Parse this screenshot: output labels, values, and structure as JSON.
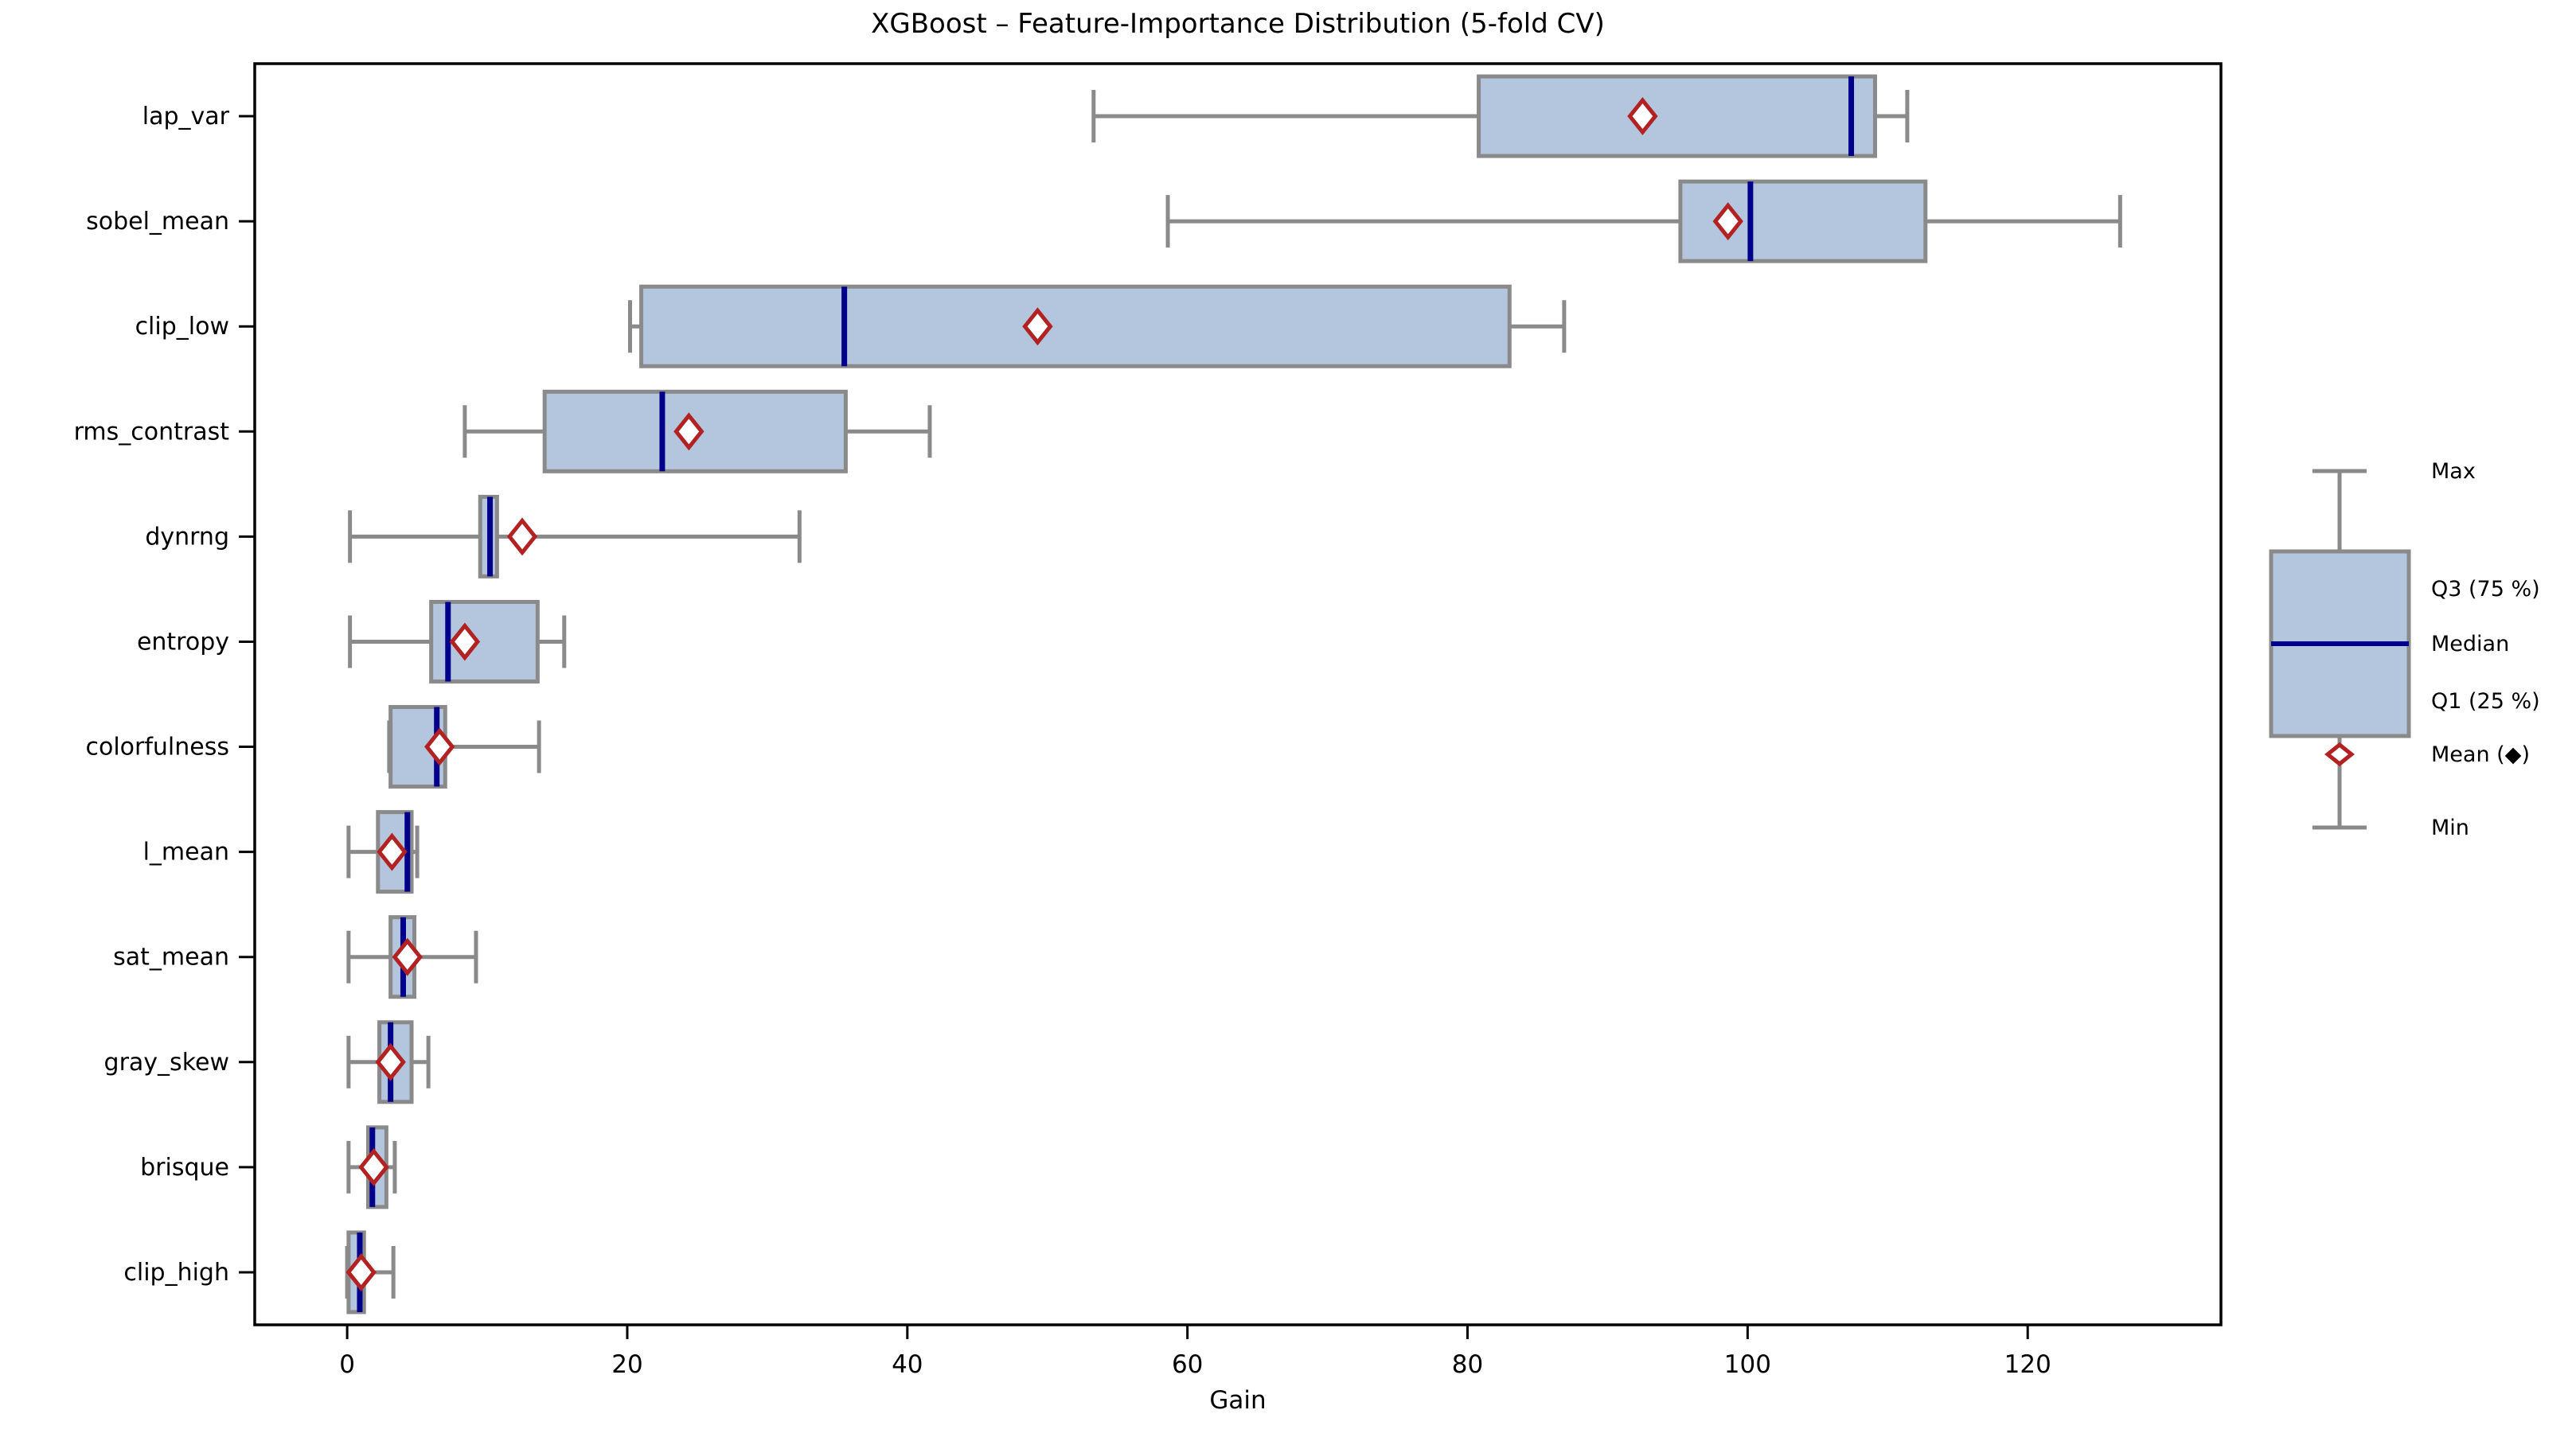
{
  "chart_data": {
    "type": "boxplot",
    "orientation": "horizontal",
    "title": "XGBoost – Feature-Importance Distribution (5-fold CV)",
    "xlabel": "Gain",
    "xlim": [
      -6.6,
      133.8
    ],
    "xticks": [
      0,
      20,
      40,
      60,
      80,
      100,
      120
    ],
    "grid": false,
    "categories": [
      "lap_var",
      "sobel_mean",
      "clip_low",
      "rms_contrast",
      "dynrng",
      "entropy",
      "colorfulness",
      "l_mean",
      "sat_mean",
      "gray_skew",
      "brisque",
      "clip_high"
    ],
    "series": [
      {
        "name": "lap_var",
        "min": 53.3,
        "q1": 80.8,
        "median": 107.4,
        "q3": 109.1,
        "max": 111.4,
        "mean": 92.5
      },
      {
        "name": "sobel_mean",
        "min": 58.6,
        "q1": 95.2,
        "median": 100.2,
        "q3": 112.7,
        "max": 126.6,
        "mean": 98.6
      },
      {
        "name": "clip_low",
        "min": 20.2,
        "q1": 21.0,
        "median": 35.5,
        "q3": 83.0,
        "max": 86.9,
        "mean": 49.3
      },
      {
        "name": "rms_contrast",
        "min": 8.4,
        "q1": 14.1,
        "median": 22.5,
        "q3": 35.6,
        "max": 41.6,
        "mean": 24.4
      },
      {
        "name": "dynrng",
        "min": 0.2,
        "q1": 9.5,
        "median": 10.2,
        "q3": 10.7,
        "max": 32.3,
        "mean": 12.5
      },
      {
        "name": "entropy",
        "min": 0.2,
        "q1": 6.0,
        "median": 7.2,
        "q3": 13.6,
        "max": 15.5,
        "mean": 8.4
      },
      {
        "name": "colorfulness",
        "min": 3.0,
        "q1": 3.1,
        "median": 6.4,
        "q3": 7.0,
        "max": 13.7,
        "mean": 6.6
      },
      {
        "name": "l_mean",
        "min": 0.1,
        "q1": 2.2,
        "median": 4.3,
        "q3": 4.6,
        "max": 5.0,
        "mean": 3.2
      },
      {
        "name": "sat_mean",
        "min": 0.1,
        "q1": 3.1,
        "median": 4.0,
        "q3": 4.8,
        "max": 9.2,
        "mean": 4.3
      },
      {
        "name": "gray_skew",
        "min": 0.1,
        "q1": 2.3,
        "median": 3.1,
        "q3": 4.6,
        "max": 5.8,
        "mean": 3.1
      },
      {
        "name": "brisque",
        "min": 0.1,
        "q1": 1.5,
        "median": 1.8,
        "q3": 2.8,
        "max": 3.4,
        "mean": 1.9
      },
      {
        "name": "clip_high",
        "min": 0.0,
        "q1": 0.1,
        "median": 0.9,
        "q3": 1.2,
        "max": 3.3,
        "mean": 1.0
      }
    ],
    "legend": {
      "position": "right",
      "labels": [
        "Max",
        "Q3 (75 %)",
        "Median",
        "Q1 (25 %)",
        "Mean (◆)",
        "Min"
      ]
    },
    "colors": {
      "box_fill": "#b4c5de",
      "box_edge": "#8a8a8a",
      "whisker": "#8a8a8a",
      "median": "#00008b",
      "mean_edge": "#b22222",
      "mean_fill": "#ffffff",
      "spine": "#000000",
      "text": "#000000"
    }
  }
}
